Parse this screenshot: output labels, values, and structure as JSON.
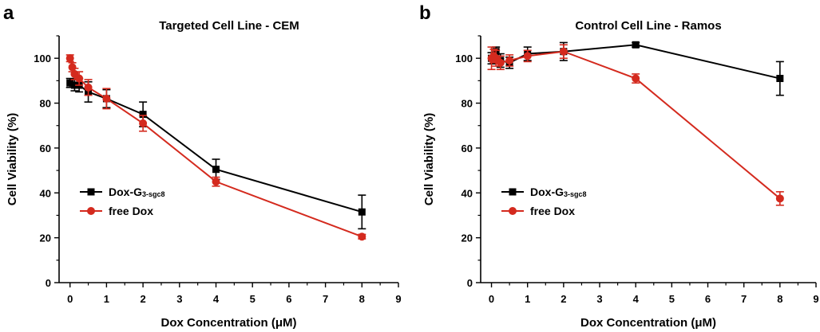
{
  "chart_data": [
    {
      "type": "line",
      "panel_label": "a",
      "title": "Targeted Cell Line - CEM",
      "xlabel": "Dox Concentration (μM)",
      "ylabel": "Cell Viability (%)",
      "xlim": [
        -0.3,
        9
      ],
      "ylim": [
        0,
        110
      ],
      "xticks": [
        "0",
        "1",
        "2",
        "3",
        "4",
        "5",
        "6",
        "7",
        "8",
        "9"
      ],
      "yticks": [
        "0",
        "20",
        "40",
        "60",
        "80",
        "100"
      ],
      "grid": false,
      "legend_position": "lower-left",
      "series": [
        {
          "name": "Dox-G",
          "name_subscript": "3-sgc8",
          "color": "#000000",
          "marker": "square",
          "x": [
            0,
            0.125,
            0.25,
            0.5,
            1,
            2,
            4,
            8
          ],
          "y": [
            89,
            88,
            88,
            85,
            82,
            75,
            50.5,
            31.5
          ],
          "error": [
            2,
            2.5,
            3,
            4.5,
            4,
            5.5,
            4.5,
            7.5
          ]
        },
        {
          "name": "free Dox",
          "color": "#d42a1e",
          "marker": "circle",
          "x": [
            0,
            0.0625,
            0.125,
            0.25,
            0.5,
            1,
            2,
            4,
            8
          ],
          "y": [
            100,
            96,
            93,
            91,
            87,
            82,
            71,
            45,
            20.5
          ],
          "error": [
            1.5,
            2,
            2.5,
            3,
            3.5,
            4.5,
            3.5,
            2,
            1
          ]
        }
      ]
    },
    {
      "type": "line",
      "panel_label": "b",
      "title": "Control Cell Line - Ramos",
      "xlabel": "Dox Concentration (μM)",
      "ylabel": "Cell Viability (%)",
      "xlim": [
        -0.3,
        9
      ],
      "ylim": [
        0,
        110
      ],
      "xticks": [
        "0",
        "1",
        "2",
        "3",
        "4",
        "5",
        "6",
        "7",
        "8",
        "9"
      ],
      "yticks": [
        "0",
        "20",
        "40",
        "60",
        "80",
        "100"
      ],
      "grid": false,
      "legend_position": "lower-left",
      "series": [
        {
          "name": "Dox-G",
          "name_subscript": "3-sgc8",
          "color": "#000000",
          "marker": "square",
          "x": [
            0,
            0.125,
            0.25,
            0.5,
            1,
            2,
            4,
            8
          ],
          "y": [
            100,
            103,
            99,
            98,
            102,
            103,
            106,
            91
          ],
          "error": [
            2.5,
            2,
            3,
            2.5,
            3,
            4,
            1,
            7.5
          ]
        },
        {
          "name": "free Dox",
          "color": "#d42a1e",
          "marker": "circle",
          "x": [
            0,
            0.0625,
            0.125,
            0.25,
            0.5,
            1,
            2,
            4,
            8
          ],
          "y": [
            100,
            101,
            100,
            98,
            99,
            101,
            103,
            91,
            37.5
          ],
          "error": [
            5,
            3,
            3.5,
            3,
            2.5,
            2.5,
            3,
            2,
            3
          ]
        }
      ]
    }
  ]
}
